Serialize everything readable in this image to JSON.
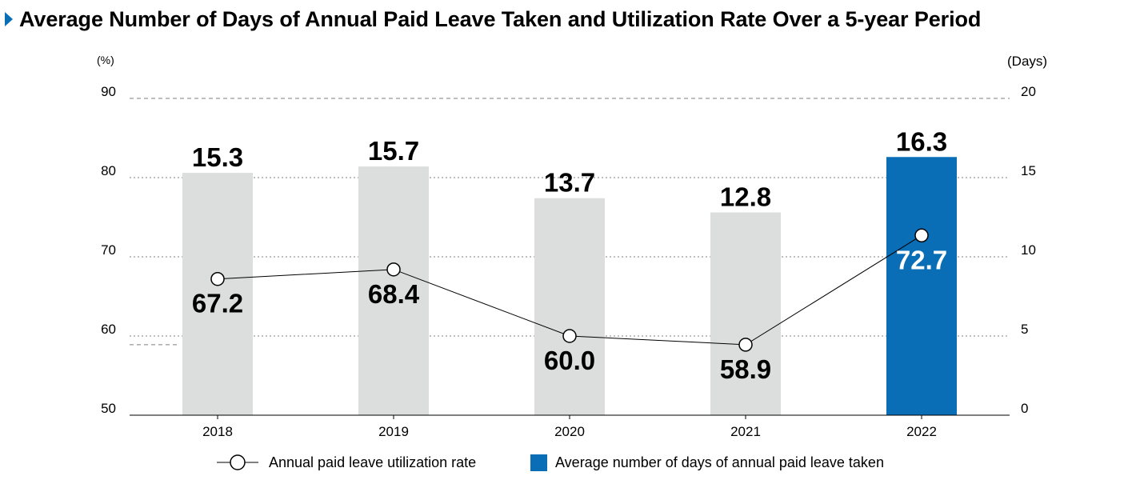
{
  "chart_data": {
    "type": "bar+line",
    "title": "Average Number of Days of Annual Paid Leave Taken and Utilization Rate Over a 5-year Period",
    "categories": [
      "2018",
      "2019",
      "2020",
      "2021",
      "2022"
    ],
    "left_axis": {
      "unit": "(%)",
      "min": 50,
      "max": 90,
      "ticks": [
        "50",
        "60",
        "70",
        "80",
        "90"
      ]
    },
    "right_axis": {
      "unit": "(Days)",
      "min": 0,
      "max": 20,
      "ticks": [
        "0",
        "5",
        "10",
        "15",
        "20"
      ]
    },
    "series": [
      {
        "name": "Average number of days of annual paid leave taken",
        "type": "bar",
        "axis": "right",
        "values": [
          15.3,
          15.7,
          13.7,
          12.8,
          16.3
        ],
        "labels": [
          "15.3",
          "15.7",
          "13.7",
          "12.8",
          "16.3"
        ],
        "highlight_index": 4
      },
      {
        "name": "Annual paid leave utilization rate",
        "type": "line",
        "axis": "left",
        "values": [
          67.2,
          68.4,
          60.0,
          58.9,
          72.7
        ],
        "labels": [
          "67.2",
          "68.4",
          "60.0",
          "58.9",
          "72.7"
        ]
      }
    ],
    "legend": {
      "position": "bottom",
      "line_label": "Annual paid leave utilization rate",
      "bar_label": "Average number of days of annual paid leave taken"
    },
    "grid": true,
    "colors": {
      "bar": "#dcdddd",
      "bar_highlight": "#0a6eb7",
      "line": "#000000",
      "marker_fill": "#ffffff",
      "grid": "#7f7f7f"
    }
  }
}
